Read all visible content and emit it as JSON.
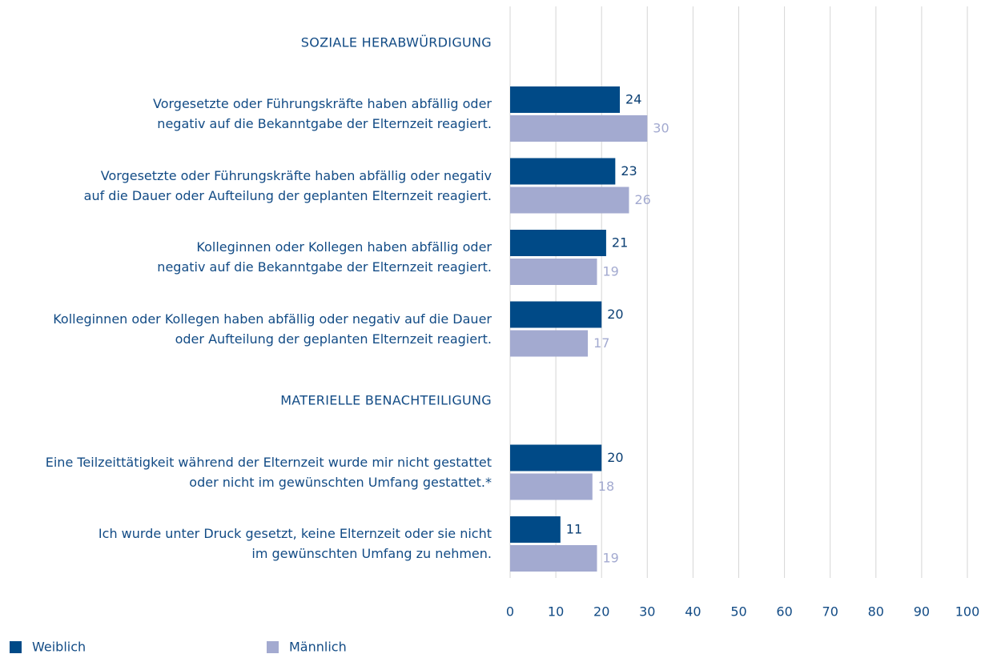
{
  "chart_data": {
    "type": "bar",
    "orientation": "horizontal",
    "categories": [
      "SOZIALE HERABWÜRDIGUNG",
      "Vorgesetzte oder Führungskräfte haben abfällig oder\nnegativ auf die Bekanntgabe der Elternzeit reagiert.",
      "Vorgesetzte oder Führungskräfte haben abfällig oder negativ\nauf die Dauer oder Aufteilung der geplanten Elternzeit reagiert.",
      "Kolleginnen oder Kollegen haben abfällig oder\nnegativ auf die Bekanntgabe der Elternzeit reagiert.",
      "Kolleginnen oder Kollegen haben abfällig oder negativ auf die Dauer\noder Aufteilung der geplanten Elternzeit reagiert.",
      "MATERIELLE BENACHTEILIGUNG",
      "Eine Teilzeittätigkeit während der Elternzeit wurde mir nicht gestattet\noder nicht im gewünschten Umfang gestattet.*",
      "Ich wurde unter Druck gesetzt, keine Elternzeit oder sie nicht\nim gewünschten Umfang zu nehmen."
    ],
    "series": [
      {
        "name": "Weiblich",
        "color": "#004a87",
        "label_color": "#0b3f73",
        "values": [
          null,
          24,
          23,
          21,
          20,
          null,
          20,
          11
        ]
      },
      {
        "name": "Männlich",
        "color": "#a3aad0",
        "label_color": "#a3aad0",
        "values": [
          null,
          30,
          26,
          19,
          17,
          null,
          18,
          19
        ]
      }
    ],
    "xlim": [
      0,
      100
    ],
    "xticks": [
      0,
      10,
      20,
      30,
      40,
      50,
      60,
      70,
      80,
      90,
      100
    ],
    "grid": true
  }
}
